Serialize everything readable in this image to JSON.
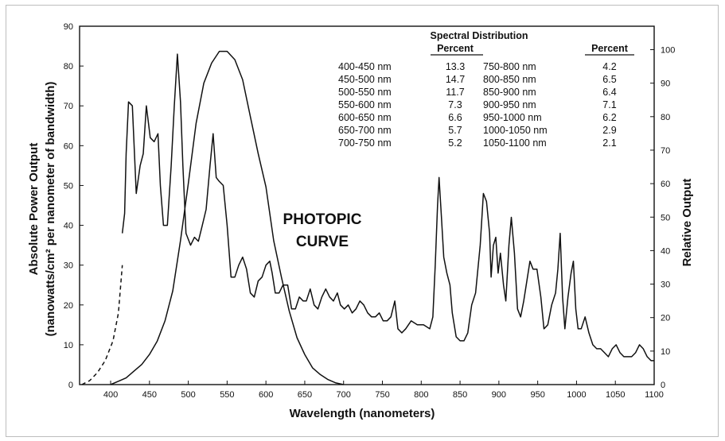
{
  "chart_data": {
    "type": "line",
    "title": "",
    "xlabel": "Wavelength (nanometers)",
    "ylabel": "Absolute Power Output",
    "ylabel_line2": "(nanowatts/cm² per nanometer of bandwidth)",
    "y2label": "Relative Output",
    "xlim": [
      360,
      1100
    ],
    "ylim": [
      0,
      90
    ],
    "y2lim": [
      0,
      107
    ],
    "xticks": [
      400,
      450,
      500,
      550,
      600,
      650,
      700,
      750,
      800,
      850,
      900,
      950,
      1000,
      1050,
      1100
    ],
    "yticks": [
      0,
      10,
      20,
      30,
      40,
      50,
      60,
      70,
      80,
      90
    ],
    "y2ticks": [
      0,
      10,
      20,
      30,
      40,
      50,
      60,
      70,
      80,
      90,
      100
    ],
    "annotation": [
      "PHOTOPIC",
      "CURVE"
    ],
    "series": [
      {
        "name": "",
        "style": "solid",
        "points": [
          [
            415,
            38
          ],
          [
            418,
            43
          ],
          [
            420,
            58
          ],
          [
            423,
            71
          ],
          [
            428,
            70
          ],
          [
            433,
            48
          ],
          [
            438,
            55
          ],
          [
            442,
            58
          ],
          [
            446,
            70
          ],
          [
            451,
            62
          ],
          [
            456,
            61
          ],
          [
            461,
            63
          ],
          [
            464,
            50
          ],
          [
            468,
            40
          ],
          [
            473,
            40
          ],
          [
            478,
            55
          ],
          [
            482,
            70
          ],
          [
            486,
            83
          ],
          [
            490,
            71
          ],
          [
            493,
            55
          ],
          [
            497,
            38
          ],
          [
            503,
            35
          ],
          [
            508,
            37
          ],
          [
            513,
            36
          ],
          [
            518,
            40
          ],
          [
            523,
            44
          ],
          [
            528,
            55
          ],
          [
            532,
            63
          ],
          [
            536,
            52
          ],
          [
            540,
            51
          ],
          [
            545,
            50
          ],
          [
            550,
            40
          ],
          [
            555,
            27
          ],
          [
            560,
            27
          ],
          [
            565,
            30
          ],
          [
            570,
            32
          ],
          [
            575,
            29
          ],
          [
            580,
            23
          ],
          [
            585,
            22
          ],
          [
            590,
            26
          ],
          [
            595,
            27
          ],
          [
            600,
            30
          ],
          [
            605,
            31
          ],
          [
            608,
            28
          ],
          [
            612,
            23
          ],
          [
            617,
            23
          ],
          [
            622,
            25
          ],
          [
            628,
            25
          ],
          [
            633,
            19
          ],
          [
            638,
            19
          ],
          [
            643,
            22
          ],
          [
            648,
            21
          ],
          [
            652,
            21
          ],
          [
            657,
            24
          ],
          [
            662,
            20
          ],
          [
            667,
            19
          ],
          [
            672,
            22
          ],
          [
            677,
            24
          ],
          [
            682,
            22
          ],
          [
            687,
            21
          ],
          [
            692,
            23
          ],
          [
            696,
            20
          ],
          [
            701,
            19
          ],
          [
            706,
            20
          ],
          [
            711,
            18
          ],
          [
            716,
            19
          ],
          [
            721,
            21
          ],
          [
            726,
            20
          ],
          [
            731,
            18
          ],
          [
            736,
            17
          ],
          [
            741,
            17
          ],
          [
            746,
            18
          ],
          [
            751,
            16
          ],
          [
            756,
            16
          ],
          [
            761,
            17
          ],
          [
            766,
            21
          ],
          [
            770,
            14
          ],
          [
            775,
            13
          ],
          [
            780,
            14
          ],
          [
            787,
            16
          ],
          [
            795,
            15
          ],
          [
            803,
            15
          ],
          [
            811,
            14
          ],
          [
            815,
            17
          ],
          [
            818,
            30
          ],
          [
            821,
            45
          ],
          [
            823,
            52
          ],
          [
            826,
            42
          ],
          [
            829,
            32
          ],
          [
            833,
            28
          ],
          [
            837,
            25
          ],
          [
            840,
            18
          ],
          [
            845,
            12
          ],
          [
            850,
            11
          ],
          [
            855,
            11
          ],
          [
            860,
            13
          ],
          [
            865,
            20
          ],
          [
            870,
            23
          ],
          [
            876,
            35
          ],
          [
            880,
            48
          ],
          [
            884,
            46
          ],
          [
            888,
            38
          ],
          [
            890,
            27
          ],
          [
            893,
            35
          ],
          [
            896,
            37
          ],
          [
            899,
            28
          ],
          [
            902,
            33
          ],
          [
            906,
            25
          ],
          [
            909,
            21
          ],
          [
            913,
            35
          ],
          [
            916,
            42
          ],
          [
            920,
            33
          ],
          [
            924,
            19
          ],
          [
            928,
            17
          ],
          [
            932,
            21
          ],
          [
            936,
            26
          ],
          [
            940,
            31
          ],
          [
            944,
            29
          ],
          [
            949,
            29
          ],
          [
            954,
            22
          ],
          [
            958,
            14
          ],
          [
            963,
            15
          ],
          [
            968,
            20
          ],
          [
            973,
            23
          ],
          [
            976,
            29
          ],
          [
            979,
            38
          ],
          [
            982,
            22
          ],
          [
            985,
            14
          ],
          [
            989,
            22
          ],
          [
            993,
            28
          ],
          [
            996,
            31
          ],
          [
            999,
            19
          ],
          [
            1002,
            14
          ],
          [
            1006,
            14
          ],
          [
            1011,
            17
          ],
          [
            1016,
            13
          ],
          [
            1021,
            10
          ],
          [
            1026,
            9
          ],
          [
            1031,
            9
          ],
          [
            1036,
            8
          ],
          [
            1041,
            7
          ],
          [
            1046,
            9
          ],
          [
            1051,
            10
          ],
          [
            1056,
            8
          ],
          [
            1061,
            7
          ],
          [
            1066,
            7
          ],
          [
            1071,
            7
          ],
          [
            1076,
            8
          ],
          [
            1081,
            10
          ],
          [
            1086,
            9
          ],
          [
            1091,
            7
          ],
          [
            1096,
            6
          ],
          [
            1100,
            6
          ]
        ]
      },
      {
        "name": "",
        "style": "dashed",
        "points": [
          [
            363,
            0
          ],
          [
            373,
            1
          ],
          [
            383,
            3
          ],
          [
            393,
            6
          ],
          [
            403,
            11
          ],
          [
            410,
            18
          ],
          [
            415,
            30
          ]
        ]
      },
      {
        "name": "PHOTOPIC CURVE",
        "style": "solid",
        "axis": "relative",
        "points": [
          [
            400,
            0
          ],
          [
            410,
            1
          ],
          [
            420,
            2
          ],
          [
            430,
            4
          ],
          [
            440,
            6
          ],
          [
            450,
            9
          ],
          [
            460,
            13
          ],
          [
            470,
            19
          ],
          [
            480,
            28
          ],
          [
            490,
            43
          ],
          [
            500,
            60
          ],
          [
            510,
            78
          ],
          [
            520,
            90
          ],
          [
            530,
            96
          ],
          [
            540,
            99.5
          ],
          [
            550,
            99.5
          ],
          [
            560,
            97
          ],
          [
            570,
            91
          ],
          [
            580,
            80
          ],
          [
            590,
            69
          ],
          [
            600,
            59
          ],
          [
            610,
            43
          ],
          [
            620,
            32
          ],
          [
            630,
            22
          ],
          [
            640,
            14
          ],
          [
            650,
            9
          ],
          [
            660,
            5
          ],
          [
            670,
            3
          ],
          [
            680,
            1.5
          ],
          [
            690,
            0.5
          ],
          [
            700,
            0
          ]
        ]
      }
    ],
    "table": {
      "title": "Spectral Distribution",
      "percent_label": "Percent",
      "rows": [
        {
          "left_range": "400-450 nm",
          "left_percent": "13.3",
          "right_range": "750-800 nm",
          "right_percent": "4.2"
        },
        {
          "left_range": "450-500 nm",
          "left_percent": "14.7",
          "right_range": "800-850 nm",
          "right_percent": "6.5"
        },
        {
          "left_range": "500-550 nm",
          "left_percent": "11.7",
          "right_range": "850-900 nm",
          "right_percent": "6.4"
        },
        {
          "left_range": "550-600 nm",
          "left_percent": "7.3",
          "right_range": "900-950 nm",
          "right_percent": "7.1"
        },
        {
          "left_range": "600-650 nm",
          "left_percent": "6.6",
          "right_range": "950-1000 nm",
          "right_percent": "6.2"
        },
        {
          "left_range": "650-700 nm",
          "left_percent": "5.7",
          "right_range": "1000-1050 nm",
          "right_percent": "2.9"
        },
        {
          "left_range": "700-750 nm",
          "left_percent": "5.2",
          "right_range": "1050-1100 nm",
          "right_percent": "2.1"
        }
      ]
    }
  }
}
